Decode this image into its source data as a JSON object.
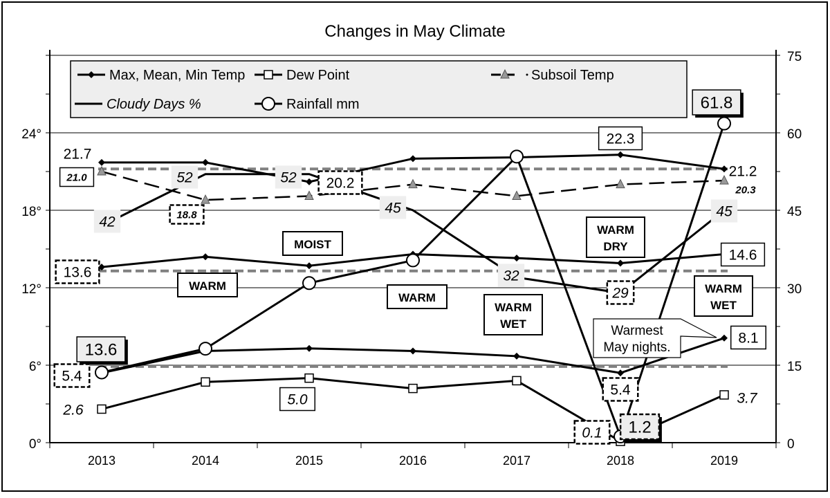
{
  "chart_data": {
    "type": "line",
    "title": "Changes in May Climate",
    "categories": [
      "2013",
      "2014",
      "2015",
      "2016",
      "2017",
      "2018",
      "2019"
    ],
    "y_left": {
      "range": [
        0,
        30
      ],
      "ticks": [
        "0°",
        "6°",
        "12°",
        "18°",
        "24°"
      ],
      "tick_values": [
        0,
        6,
        12,
        18,
        24
      ]
    },
    "y_right": {
      "range": [
        0,
        75
      ],
      "ticks": [
        "0",
        "15",
        "30",
        "45",
        "60",
        "75"
      ],
      "tick_values": [
        0,
        15,
        30,
        45,
        60,
        75
      ]
    },
    "grid": true,
    "legend_position": "top",
    "series": [
      {
        "name": "Max, Mean, Min Temp",
        "axis": "left",
        "part": "max",
        "marker": "diamond",
        "values": [
          21.7,
          21.7,
          20.2,
          22.0,
          22.1,
          22.3,
          21.2
        ]
      },
      {
        "name": "Max, Mean, Min Temp",
        "axis": "left",
        "part": "mean",
        "marker": "diamond",
        "values": [
          13.6,
          14.4,
          13.7,
          14.6,
          14.3,
          13.9,
          14.6
        ]
      },
      {
        "name": "Max, Mean, Min Temp",
        "axis": "left",
        "part": "min",
        "marker": "diamond",
        "values": [
          5.4,
          7.1,
          7.3,
          7.1,
          6.7,
          5.4,
          8.1
        ]
      },
      {
        "name": "Dew Point",
        "axis": "left",
        "marker": "square",
        "values": [
          2.6,
          4.7,
          5.0,
          4.2,
          4.8,
          0.1,
          3.7
        ]
      },
      {
        "name": "Subsoil Temp",
        "axis": "left",
        "marker": "triangle",
        "dashed": true,
        "values": [
          21.0,
          18.8,
          19.1,
          20.0,
          19.1,
          20.0,
          20.3
        ]
      },
      {
        "name": "Cloudy Days %",
        "axis": "right",
        "marker": "none",
        "values": [
          42,
          52,
          52,
          45,
          32,
          29,
          45
        ]
      },
      {
        "name": "Rainfall mm",
        "axis": "right",
        "marker": "circle",
        "values": [
          13.6,
          18.2,
          30.9,
          35.3,
          55.4,
          1.2,
          61.8
        ]
      }
    ],
    "reference_lines_left": [
      21.2,
      13.3,
      5.9
    ],
    "data_labels": [
      "21.7",
      "21.0",
      "52",
      "52",
      "20.2",
      "42",
      "18.8",
      "45",
      "22.3",
      "61.8",
      "21.2",
      "20.3",
      "45",
      "14.6",
      "13.6",
      "32",
      "29",
      "13.6",
      "5.4",
      "2.6",
      "5.0",
      "0.1",
      "1.2",
      "5.4",
      "3.7",
      "8.1"
    ],
    "annotations": [
      "MOIST",
      "WARM",
      "WARM",
      "WARM\nWET",
      "WARM\nDRY",
      "WARM\nWET"
    ],
    "callout": [
      "Warmest",
      "May nights."
    ],
    "colors": {
      "line": "#000000",
      "reference": "#808080",
      "legend_bg": "#eeeeee",
      "subsoil_marker": "#999999",
      "label_grey": "#eeeeee"
    }
  }
}
